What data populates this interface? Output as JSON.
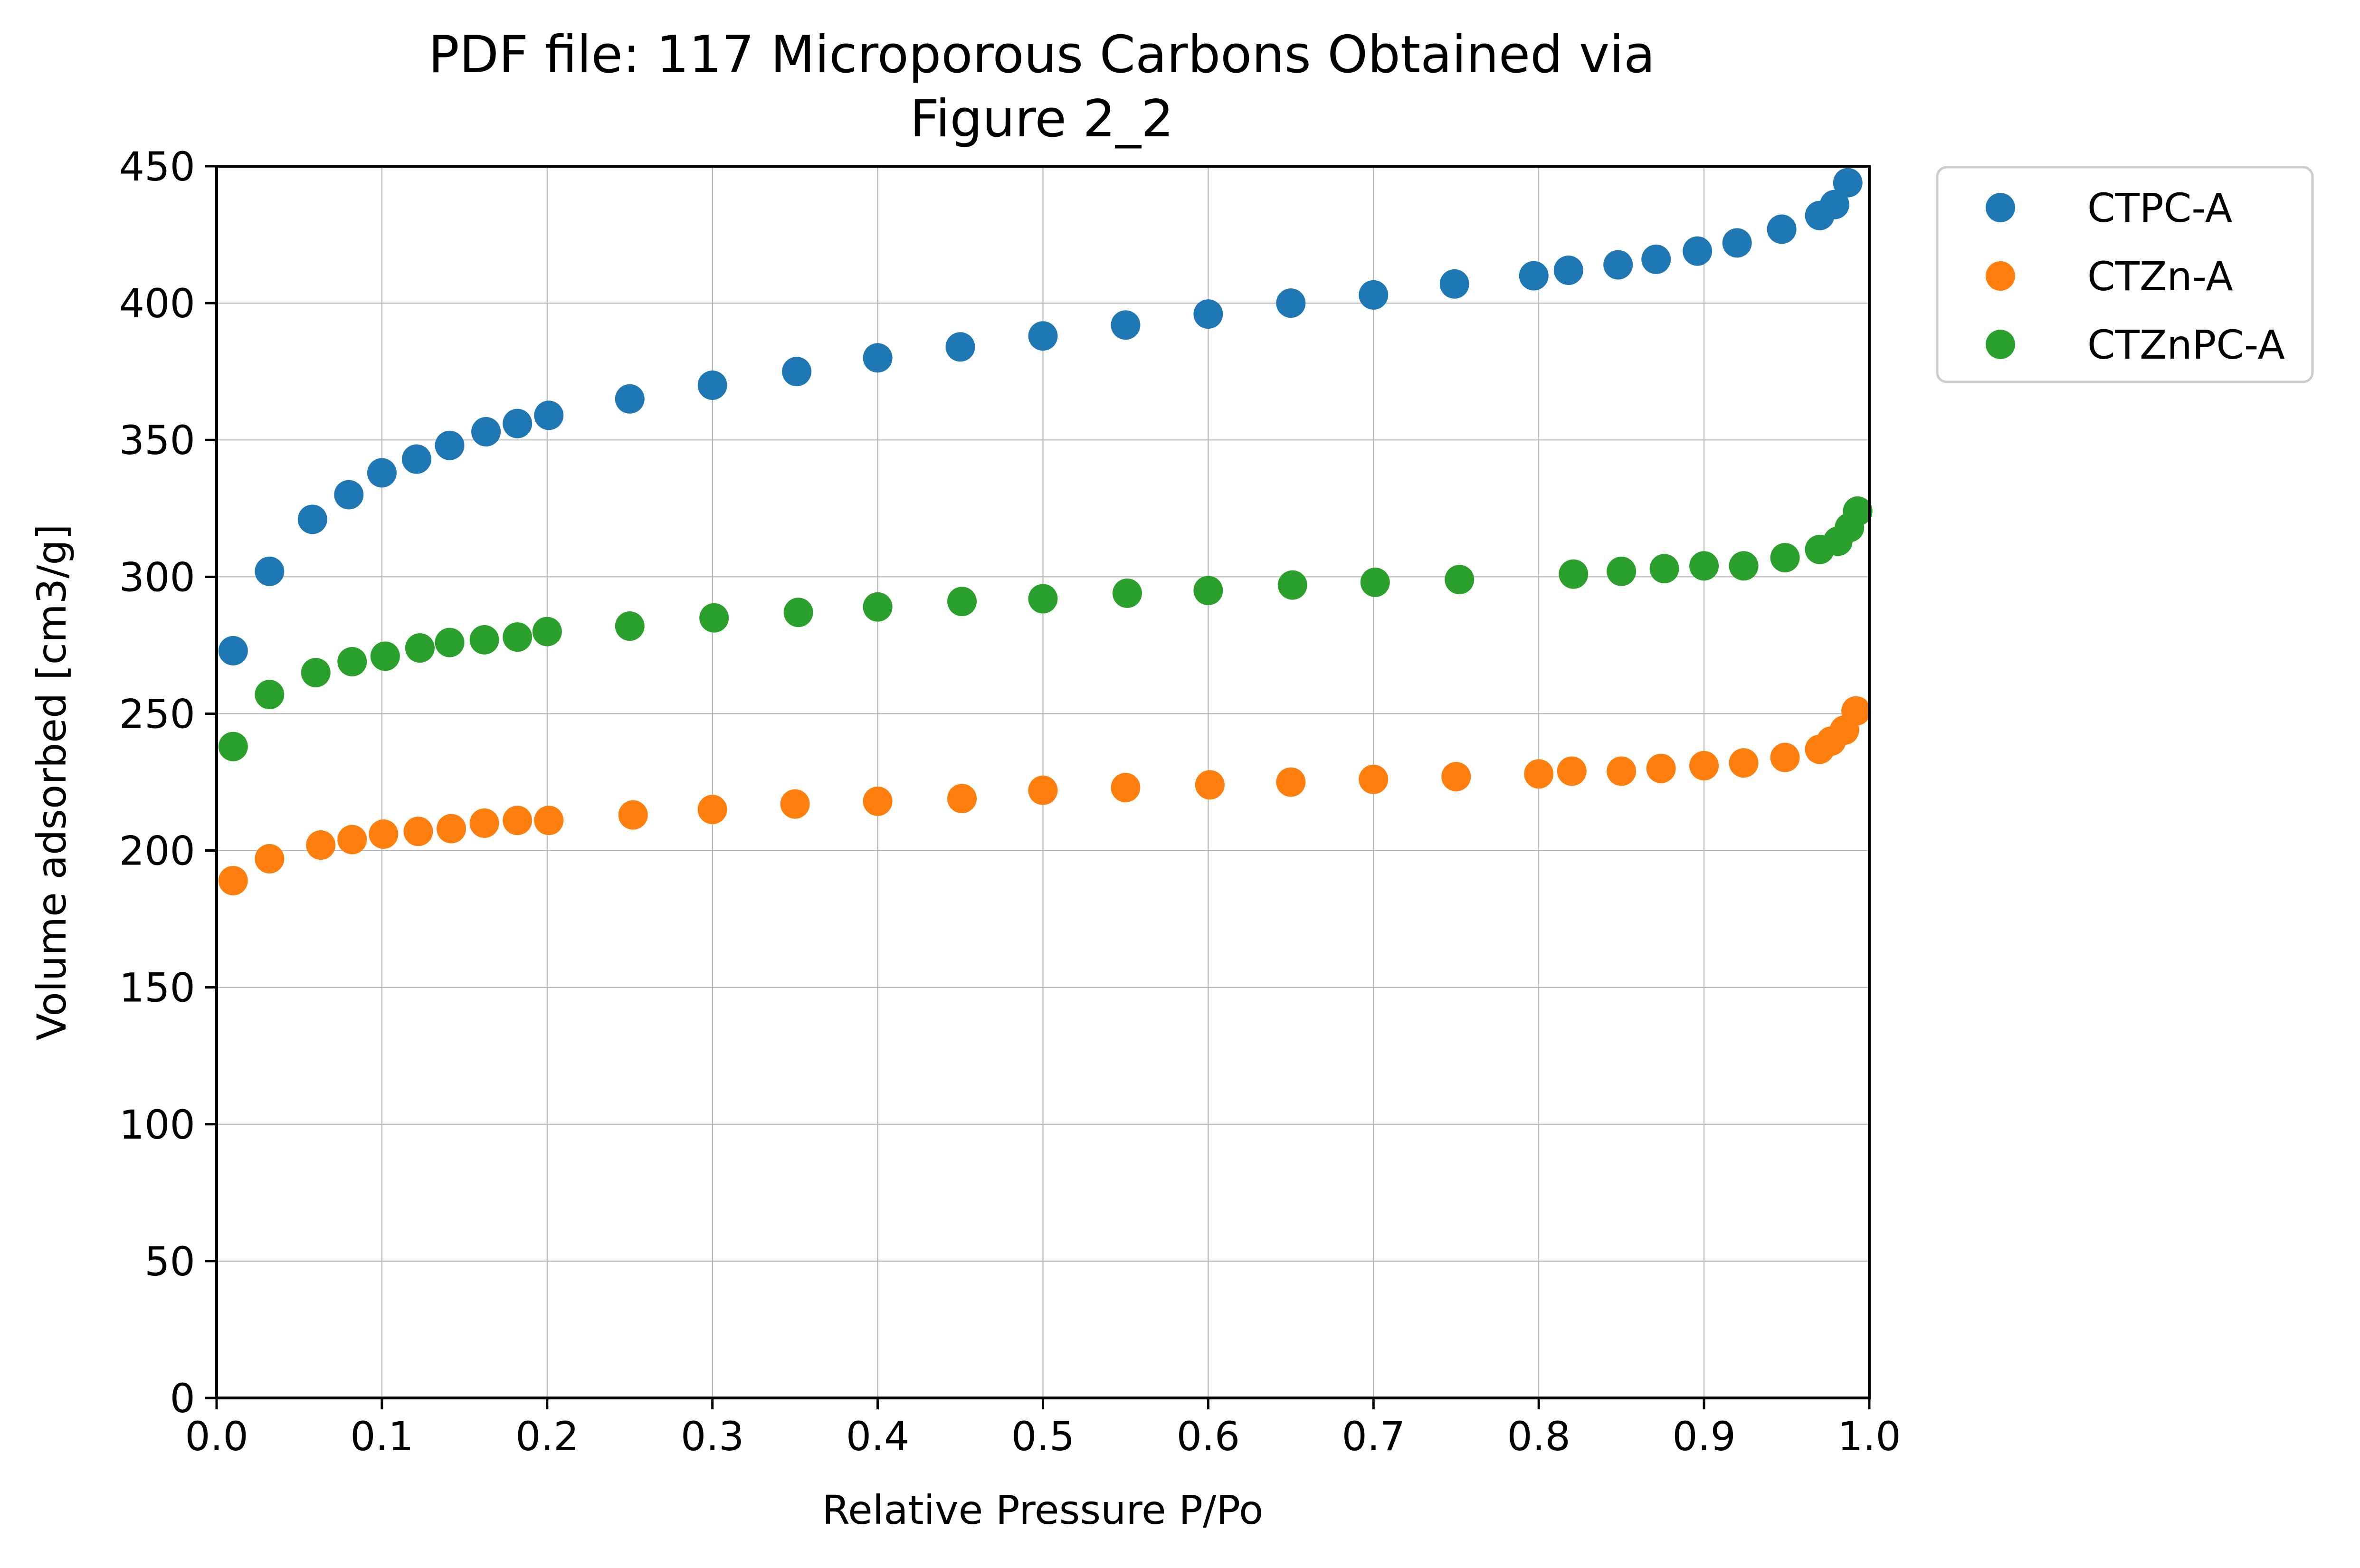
{
  "chart_data": {
    "type": "scatter",
    "title": "PDF file: 117 Microporous Carbons Obtained via",
    "subtitle": "Figure 2_2",
    "xlabel": "Relative Pressure P/Po",
    "ylabel": "Volume adsorbed [cm3/g]",
    "xlim": [
      0.0,
      1.0
    ],
    "ylim": [
      0,
      450
    ],
    "xticks": [
      "0.0",
      "0.1",
      "0.2",
      "0.3",
      "0.4",
      "0.5",
      "0.6",
      "0.7",
      "0.8",
      "0.9",
      "1.0"
    ],
    "yticks": [
      "0",
      "50",
      "100",
      "150",
      "200",
      "250",
      "300",
      "350",
      "400",
      "450"
    ],
    "grid": true,
    "legend_position": "outside-top-right",
    "series": [
      {
        "name": "CTPC-A",
        "color": "#1f77b4",
        "points": [
          [
            0.01,
            273
          ],
          [
            0.032,
            302
          ],
          [
            0.058,
            321
          ],
          [
            0.08,
            330
          ],
          [
            0.1,
            338
          ],
          [
            0.121,
            343
          ],
          [
            0.141,
            348
          ],
          [
            0.163,
            353
          ],
          [
            0.182,
            356
          ],
          [
            0.201,
            359
          ],
          [
            0.25,
            365
          ],
          [
            0.3,
            370
          ],
          [
            0.351,
            375
          ],
          [
            0.4,
            380
          ],
          [
            0.45,
            384
          ],
          [
            0.5,
            388
          ],
          [
            0.55,
            392
          ],
          [
            0.6,
            396
          ],
          [
            0.65,
            400
          ],
          [
            0.7,
            403
          ],
          [
            0.749,
            407
          ],
          [
            0.797,
            410
          ],
          [
            0.818,
            412
          ],
          [
            0.848,
            414
          ],
          [
            0.871,
            416
          ],
          [
            0.896,
            419
          ],
          [
            0.92,
            422
          ],
          [
            0.947,
            427
          ],
          [
            0.97,
            432
          ],
          [
            0.979,
            436
          ],
          [
            0.987,
            444
          ]
        ]
      },
      {
        "name": "CTZn-A",
        "color": "#ff7f0e",
        "points": [
          [
            0.01,
            189
          ],
          [
            0.032,
            197
          ],
          [
            0.063,
            202
          ],
          [
            0.082,
            204
          ],
          [
            0.101,
            206
          ],
          [
            0.122,
            207
          ],
          [
            0.142,
            208
          ],
          [
            0.162,
            210
          ],
          [
            0.182,
            211
          ],
          [
            0.201,
            211
          ],
          [
            0.252,
            213
          ],
          [
            0.3,
            215
          ],
          [
            0.35,
            217
          ],
          [
            0.4,
            218
          ],
          [
            0.451,
            219
          ],
          [
            0.5,
            222
          ],
          [
            0.55,
            223
          ],
          [
            0.601,
            224
          ],
          [
            0.65,
            225
          ],
          [
            0.7,
            226
          ],
          [
            0.75,
            227
          ],
          [
            0.8,
            228
          ],
          [
            0.82,
            229
          ],
          [
            0.85,
            229
          ],
          [
            0.874,
            230
          ],
          [
            0.9,
            231
          ],
          [
            0.924,
            232
          ],
          [
            0.949,
            234
          ],
          [
            0.97,
            237
          ],
          [
            0.977,
            240
          ],
          [
            0.985,
            244
          ],
          [
            0.992,
            251
          ]
        ]
      },
      {
        "name": "CTZnPC-A",
        "color": "#2ca02c",
        "points": [
          [
            0.01,
            238
          ],
          [
            0.032,
            257
          ],
          [
            0.06,
            265
          ],
          [
            0.082,
            269
          ],
          [
            0.102,
            271
          ],
          [
            0.123,
            274
          ],
          [
            0.141,
            276
          ],
          [
            0.162,
            277
          ],
          [
            0.182,
            278
          ],
          [
            0.2,
            280
          ],
          [
            0.25,
            282
          ],
          [
            0.301,
            285
          ],
          [
            0.352,
            287
          ],
          [
            0.4,
            289
          ],
          [
            0.451,
            291
          ],
          [
            0.5,
            292
          ],
          [
            0.551,
            294
          ],
          [
            0.6,
            295
          ],
          [
            0.651,
            297
          ],
          [
            0.701,
            298
          ],
          [
            0.752,
            299
          ],
          [
            0.821,
            301
          ],
          [
            0.85,
            302
          ],
          [
            0.876,
            303
          ],
          [
            0.9,
            304
          ],
          [
            0.924,
            304
          ],
          [
            0.949,
            307
          ],
          [
            0.97,
            310
          ],
          [
            0.981,
            313
          ],
          [
            0.988,
            318
          ],
          [
            0.993,
            324
          ]
        ]
      }
    ]
  }
}
